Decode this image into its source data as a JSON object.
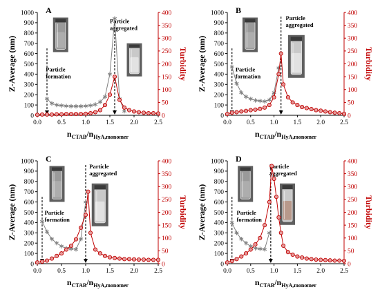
{
  "colors": {
    "zavg": "#7f7f7f",
    "turbidity": "#c00000",
    "turbidity_marker": "#e59a9a",
    "gold_marker": "#d9b648",
    "axis": "#000000"
  },
  "chart_data": [
    {
      "panel": "A",
      "type": "line",
      "xlabel": "n",
      "xlabel_sub1": "CTAB",
      "xlabel_mid": "/n",
      "xlabel_sub2": "HyA,monomer",
      "ylabel_left": "Z-Average (nm)",
      "ylabel_right": "Turbidity",
      "xlim": [
        0,
        2.5
      ],
      "ylim_left": [
        0,
        1000
      ],
      "ylim_right": [
        0,
        400
      ],
      "xticks": [
        "0.0",
        "0.5",
        "1.0",
        "1.5",
        "2.0",
        "2.5"
      ],
      "yticks_left": [
        "0",
        "100",
        "200",
        "300",
        "400",
        "500",
        "600",
        "700",
        "800",
        "900",
        "1000"
      ],
      "yticks_right": [
        "0",
        "50",
        "100",
        "150",
        "200",
        "250",
        "300",
        "350",
        "400"
      ],
      "annotations": [
        {
          "lines": [
            "Particle",
            "formation"
          ],
          "arrow_x": 0.2
        },
        {
          "lines": [
            "Particle",
            "aggregated"
          ],
          "arrow_x": 1.6
        }
      ],
      "series": [
        {
          "axis": "left",
          "marker": "star",
          "x": [
            0.2,
            0.3,
            0.4,
            0.5,
            0.6,
            0.7,
            0.8,
            0.9,
            1.0,
            1.1,
            1.2,
            1.3,
            1.4,
            1.5,
            1.6,
            1.7,
            1.8
          ],
          "values": [
            160,
            115,
            100,
            95,
            90,
            88,
            88,
            88,
            90,
            95,
            105,
            130,
            180,
            400,
            940,
            160,
            40
          ]
        },
        {
          "axis": "right",
          "marker": "circle",
          "x": [
            0.0,
            0.1,
            0.2,
            0.3,
            0.4,
            0.5,
            0.6,
            0.7,
            0.8,
            0.9,
            1.0,
            1.1,
            1.2,
            1.3,
            1.4,
            1.5,
            1.6,
            1.7,
            1.8,
            1.9,
            2.0,
            2.1,
            2.2,
            2.3,
            2.4,
            2.5
          ],
          "values": [
            2,
            3,
            3,
            3,
            4,
            4,
            5,
            5,
            5,
            5,
            6,
            8,
            12,
            20,
            40,
            80,
            150,
            60,
            30,
            20,
            15,
            12,
            10,
            8,
            8,
            7
          ]
        }
      ]
    },
    {
      "panel": "B",
      "type": "line",
      "xlabel": "n",
      "xlabel_sub1": "CTAB",
      "xlabel_mid": "/n",
      "xlabel_sub2": "HyA,monomer",
      "ylabel_left": "Z-Average (nm)",
      "ylabel_right": "Turbidity",
      "xlim": [
        0,
        2.5
      ],
      "ylim_left": [
        0,
        1000
      ],
      "ylim_right": [
        0,
        400
      ],
      "xticks": [
        "0.0",
        "0.5",
        "1.0",
        "1.5",
        "2.0",
        "2.5"
      ],
      "yticks_left": [
        "0",
        "100",
        "200",
        "300",
        "400",
        "500",
        "600",
        "700",
        "800",
        "900",
        "1000"
      ],
      "yticks_right": [
        "0",
        "50",
        "100",
        "150",
        "200",
        "250",
        "300",
        "350",
        "400"
      ],
      "annotations": [
        {
          "lines": [
            "Particle",
            "formation"
          ],
          "arrow_x": 0.1
        },
        {
          "lines": [
            "Particle",
            "aggregated"
          ],
          "arrow_x": 1.15
        }
      ],
      "series": [
        {
          "axis": "left",
          "marker": "star",
          "x": [
            0.1,
            0.2,
            0.3,
            0.4,
            0.5,
            0.6,
            0.7,
            0.8,
            0.9,
            1.0,
            1.1
          ],
          "values": [
            470,
            310,
            220,
            180,
            160,
            145,
            140,
            135,
            150,
            220,
            460
          ]
        },
        {
          "axis": "right",
          "marker": "circle",
          "x": [
            0.0,
            0.1,
            0.2,
            0.3,
            0.4,
            0.5,
            0.6,
            0.7,
            0.8,
            0.9,
            1.0,
            1.1,
            1.15,
            1.2,
            1.3,
            1.4,
            1.5,
            1.6,
            1.7,
            1.8,
            1.9,
            2.0,
            2.1,
            2.2,
            2.3,
            2.4,
            2.5
          ],
          "values": [
            5,
            10,
            12,
            15,
            17,
            20,
            22,
            25,
            30,
            40,
            70,
            160,
            240,
            120,
            70,
            50,
            40,
            32,
            28,
            24,
            20,
            18,
            15,
            12,
            10,
            8,
            6
          ]
        }
      ]
    },
    {
      "panel": "C",
      "type": "line",
      "xlabel": "n",
      "xlabel_sub1": "CTAB",
      "xlabel_mid": "/n",
      "xlabel_sub2": "HyA,monomer",
      "ylabel_left": "Z-Average (nm)",
      "ylabel_right": "Turbidity",
      "xlim": [
        0,
        2.5
      ],
      "ylim_left": [
        0,
        1000
      ],
      "ylim_right": [
        0,
        400
      ],
      "xticks": [
        "0.0",
        "0.5",
        "1.0",
        "1.5",
        "2.0",
        "2.5"
      ],
      "yticks_left": [
        "0",
        "100",
        "200",
        "300",
        "400",
        "500",
        "600",
        "700",
        "800",
        "900",
        "1000"
      ],
      "yticks_right": [
        "0",
        "50",
        "100",
        "150",
        "200",
        "250",
        "300",
        "350",
        "400"
      ],
      "annotations": [
        {
          "lines": [
            "Particle",
            "formation"
          ],
          "arrow_x": 0.1
        },
        {
          "lines": [
            "Particle",
            "aggregated"
          ],
          "arrow_x": 1.0
        }
      ],
      "series": [
        {
          "axis": "left",
          "marker": "star",
          "x": [
            0.1,
            0.2,
            0.3,
            0.4,
            0.5,
            0.6,
            0.7,
            0.8,
            0.9,
            1.0
          ],
          "values": [
            410,
            310,
            240,
            200,
            170,
            150,
            145,
            140,
            240,
            600
          ]
        },
        {
          "axis": "right",
          "marker": "circle",
          "x": [
            0.0,
            0.1,
            0.2,
            0.3,
            0.4,
            0.5,
            0.6,
            0.7,
            0.8,
            0.9,
            1.0,
            1.05,
            1.1,
            1.2,
            1.3,
            1.4,
            1.5,
            1.6,
            1.7,
            1.8,
            1.9,
            2.0,
            2.1,
            2.2,
            2.3,
            2.4,
            2.5
          ],
          "values": [
            5,
            8,
            12,
            20,
            30,
            40,
            55,
            70,
            95,
            140,
            190,
            280,
            120,
            55,
            40,
            30,
            25,
            22,
            20,
            18,
            18,
            17,
            16,
            16,
            15,
            15,
            15
          ]
        }
      ]
    },
    {
      "panel": "D",
      "type": "line",
      "xlabel": "n",
      "xlabel_sub1": "CTAB",
      "xlabel_mid": "/n",
      "xlabel_sub2": "HyA,monomer",
      "ylabel_left": "Z-Average (nm)",
      "ylabel_right": "Turbidity",
      "xlim": [
        0,
        2.5
      ],
      "ylim_left": [
        0,
        1000
      ],
      "ylim_right": [
        0,
        400
      ],
      "xticks": [
        "0.0",
        "0.5",
        "1.0",
        "1.5",
        "2.0",
        "2.5"
      ],
      "yticks_left": [
        "0",
        "100",
        "200",
        "300",
        "400",
        "500",
        "600",
        "700",
        "800",
        "900",
        "1000"
      ],
      "yticks_right": [
        "0",
        "50",
        "100",
        "150",
        "200",
        "250",
        "300",
        "350",
        "400"
      ],
      "annotations": [
        {
          "lines": [
            "Particle",
            "formation"
          ],
          "arrow_x": 0.1
        },
        {
          "lines": [
            "Particle",
            "aggregated"
          ],
          "arrow_x": 0.93
        }
      ],
      "series": [
        {
          "axis": "left",
          "marker": "star",
          "x": [
            0.1,
            0.2,
            0.3,
            0.4,
            0.5,
            0.6,
            0.7,
            0.8,
            0.9
          ],
          "values": [
            400,
            300,
            240,
            200,
            170,
            150,
            145,
            140,
            300
          ]
        },
        {
          "axis": "right",
          "marker": "circle",
          "x": [
            0.0,
            0.1,
            0.2,
            0.3,
            0.4,
            0.5,
            0.6,
            0.7,
            0.8,
            0.9,
            0.95,
            1.0,
            1.05,
            1.1,
            1.15,
            1.2,
            1.3,
            1.4,
            1.5,
            1.6,
            1.7,
            1.8,
            1.9,
            2.0,
            2.1,
            2.2,
            2.3,
            2.4,
            2.5
          ],
          "values": [
            5,
            10,
            18,
            28,
            40,
            55,
            75,
            100,
            150,
            240,
            380,
            330,
            260,
            180,
            120,
            70,
            45,
            35,
            28,
            24,
            20,
            18,
            16,
            15,
            14,
            13,
            12,
            12,
            11
          ]
        }
      ]
    }
  ]
}
